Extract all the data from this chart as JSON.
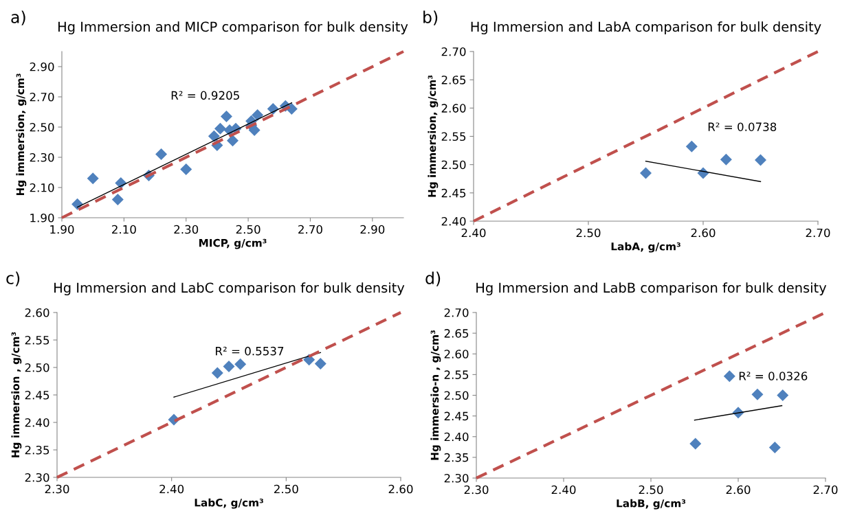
{
  "chart_data": [
    {
      "type": "scatter",
      "title": "Hg Immersion and MICP comparison for bulk density",
      "xlabel": "MICP, g/cm³",
      "ylabel": "Hg immersion, g/cm³",
      "x": [
        1.95,
        2.0,
        2.08,
        2.09,
        2.18,
        2.22,
        2.3,
        2.39,
        2.4,
        2.41,
        2.43,
        2.44,
        2.45,
        2.46,
        2.51,
        2.51,
        2.52,
        2.53,
        2.58,
        2.62,
        2.64
      ],
      "series": [
        {
          "color": "#4f81bd",
          "marker": "diamond",
          "values": [
            1.99,
            2.16,
            2.02,
            2.13,
            2.18,
            2.32,
            2.22,
            2.44,
            2.38,
            2.49,
            2.57,
            2.48,
            2.41,
            2.49,
            2.54,
            2.51,
            2.48,
            2.58,
            2.62,
            2.64,
            2.62
          ]
        },
        {
          "type": "line",
          "color": "#000000",
          "line_style": "solid",
          "x": [
            1.95,
            2.64
          ],
          "values": [
            1.97,
            2.66
          ]
        },
        {
          "type": "line",
          "color": "#c0504d",
          "line_style": "dashed",
          "x": [
            1.9,
            3.0
          ],
          "values": [
            1.9,
            3.0
          ]
        }
      ],
      "xlim": [
        1.9,
        3.0
      ],
      "ylim": [
        1.9,
        3.0
      ],
      "xticks": [
        {
          "value": 1.9,
          "label": "1.90"
        },
        {
          "value": 2.1,
          "label": "2.10"
        },
        {
          "value": 2.3,
          "label": "2.30"
        },
        {
          "value": 2.5,
          "label": "2.50"
        },
        {
          "value": 2.7,
          "label": "2.70"
        },
        {
          "value": 2.9,
          "label": "2.90"
        }
      ],
      "yticks": [
        {
          "value": 1.9,
          "label": "1.90"
        },
        {
          "value": 2.1,
          "label": "2.10"
        },
        {
          "value": 2.3,
          "label": "2.30"
        },
        {
          "value": 2.5,
          "label": "2.50"
        },
        {
          "value": 2.7,
          "label": "2.70"
        },
        {
          "value": 2.9,
          "label": "2.90"
        }
      ],
      "grid": false,
      "annotations": [
        "a)",
        "R² = 0.9205"
      ]
    },
    {
      "type": "scatter",
      "title": "Hg Immersion and LabA comparison for bulk density",
      "xlabel": "LabA, g/cm³",
      "ylabel": "Hg immersion, g/cm³",
      "x": [
        2.55,
        2.59,
        2.6,
        2.62,
        2.65
      ],
      "series": [
        {
          "color": "#4f81bd",
          "marker": "diamond",
          "values": [
            2.485,
            2.532,
            2.485,
            2.509,
            2.508
          ]
        },
        {
          "type": "line",
          "color": "#000000",
          "line_style": "solid",
          "x": [
            2.55,
            2.65
          ],
          "values": [
            2.506,
            2.47
          ]
        },
        {
          "type": "line",
          "color": "#c0504d",
          "line_style": "dashed",
          "x": [
            2.4,
            2.7
          ],
          "values": [
            2.4,
            2.7
          ]
        }
      ],
      "xlim": [
        2.4,
        2.7
      ],
      "ylim": [
        2.4,
        2.7
      ],
      "xticks": [
        {
          "value": 2.4,
          "label": "2.40"
        },
        {
          "value": 2.5,
          "label": "2.50"
        },
        {
          "value": 2.6,
          "label": "2.60"
        },
        {
          "value": 2.7,
          "label": "2.70"
        }
      ],
      "yticks": [
        {
          "value": 2.4,
          "label": "2.40"
        },
        {
          "value": 2.45,
          "label": "2.45"
        },
        {
          "value": 2.5,
          "label": "2.50"
        },
        {
          "value": 2.55,
          "label": "2.55"
        },
        {
          "value": 2.6,
          "label": "2.60"
        },
        {
          "value": 2.65,
          "label": "2.65"
        },
        {
          "value": 2.7,
          "label": "2.70"
        }
      ],
      "grid": false,
      "annotations": [
        "b)",
        "R² = 0.0738"
      ]
    },
    {
      "type": "scatter",
      "title": "Hg Immersion and LabC comparison for bulk density",
      "xlabel": "LabC, g/cm³",
      "ylabel": "Hg immersion , g/cm³",
      "x": [
        2.402,
        2.44,
        2.45,
        2.46,
        2.52,
        2.53
      ],
      "series": [
        {
          "color": "#4f81bd",
          "marker": "diamond",
          "values": [
            2.405,
            2.49,
            2.502,
            2.506,
            2.514,
            2.507
          ]
        },
        {
          "type": "line",
          "color": "#000000",
          "line_style": "solid",
          "x": [
            2.402,
            2.53
          ],
          "values": [
            2.446,
            2.527
          ]
        },
        {
          "type": "line",
          "color": "#c0504d",
          "line_style": "dashed",
          "x": [
            2.3,
            2.6
          ],
          "values": [
            2.3,
            2.6
          ]
        }
      ],
      "xlim": [
        2.3,
        2.6
      ],
      "ylim": [
        2.3,
        2.6
      ],
      "xticks": [
        {
          "value": 2.3,
          "label": "2.30"
        },
        {
          "value": 2.4,
          "label": "2.40"
        },
        {
          "value": 2.5,
          "label": "2.50"
        },
        {
          "value": 2.6,
          "label": "2.60"
        }
      ],
      "yticks": [
        {
          "value": 2.3,
          "label": "2.30"
        },
        {
          "value": 2.35,
          "label": "2.35"
        },
        {
          "value": 2.4,
          "label": "2.40"
        },
        {
          "value": 2.45,
          "label": "2.45"
        },
        {
          "value": 2.5,
          "label": "2.50"
        },
        {
          "value": 2.55,
          "label": "2.55"
        },
        {
          "value": 2.6,
          "label": "2.60"
        }
      ],
      "grid": false,
      "annotations": [
        "c)",
        "R² = 0.5537"
      ]
    },
    {
      "type": "scatter",
      "title": "Hg Immersion and LabB comparison for bulk density",
      "xlabel": "LabB, g/cm³",
      "ylabel": "Hg immersio-n , g/cm³",
      "x": [
        2.551,
        2.59,
        2.6,
        2.622,
        2.642,
        2.651
      ],
      "series": [
        {
          "color": "#4f81bd",
          "marker": "diamond",
          "values": [
            2.383,
            2.546,
            2.458,
            2.502,
            2.374,
            2.5
          ]
        },
        {
          "type": "line",
          "color": "#000000",
          "line_style": "solid",
          "x": [
            2.55,
            2.65
          ],
          "values": [
            2.44,
            2.475
          ]
        },
        {
          "type": "line",
          "color": "#c0504d",
          "line_style": "dashed",
          "x": [
            2.3,
            2.7
          ],
          "values": [
            2.3,
            2.7
          ]
        }
      ],
      "xlim": [
        2.3,
        2.7
      ],
      "ylim": [
        2.3,
        2.7
      ],
      "xticks": [
        {
          "value": 2.3,
          "label": "2.30"
        },
        {
          "value": 2.4,
          "label": "2.40"
        },
        {
          "value": 2.5,
          "label": "2.50"
        },
        {
          "value": 2.6,
          "label": "2.60"
        },
        {
          "value": 2.7,
          "label": "2.70"
        }
      ],
      "yticks": [
        {
          "value": 2.3,
          "label": "2.30"
        },
        {
          "value": 2.35,
          "label": "2.35"
        },
        {
          "value": 2.4,
          "label": "2.40"
        },
        {
          "value": 2.45,
          "label": "2.45"
        },
        {
          "value": 2.5,
          "label": "2.50"
        },
        {
          "value": 2.55,
          "label": "2.55"
        },
        {
          "value": 2.6,
          "label": "2.60"
        },
        {
          "value": 2.65,
          "label": "2.65"
        },
        {
          "value": 2.7,
          "label": "2.70"
        }
      ],
      "grid": false,
      "annotations": [
        "d)",
        "R² = 0.0326"
      ]
    }
  ]
}
